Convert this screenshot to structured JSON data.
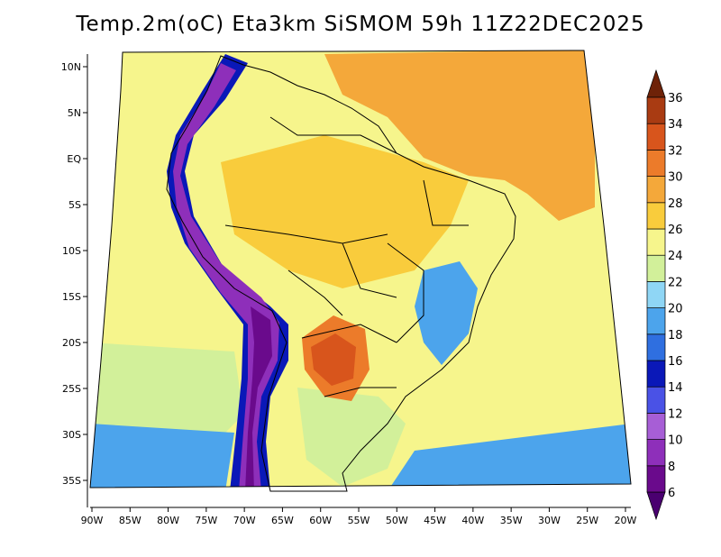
{
  "title": "Temp.2m(oC) Eta3km SiSMOM 59h 11Z22DEC2025",
  "map": {
    "lat_labels": [
      "10N",
      "5N",
      "EQ",
      "5S",
      "10S",
      "15S",
      "20S",
      "25S",
      "30S",
      "35S"
    ],
    "lon_labels": [
      "90W",
      "85W",
      "80W",
      "75W",
      "70W",
      "65W",
      "60W",
      "55W",
      "50W",
      "45W",
      "40W",
      "35W",
      "30W",
      "25W",
      "20W"
    ],
    "lat_range": [
      10,
      -37
    ],
    "lon_range": [
      -91,
      -20
    ],
    "regions": [
      {
        "name": "atlantic-north",
        "temp": 28
      },
      {
        "name": "amazon-basin",
        "temp": 26
      },
      {
        "name": "pacific-equatorial",
        "temp": 25
      },
      {
        "name": "pacific-south",
        "temp": 22
      },
      {
        "name": "southern-ocean",
        "temp": 18
      },
      {
        "name": "chaco-hotspot",
        "temp": 31
      },
      {
        "name": "andes-highlands",
        "temp": 8
      },
      {
        "name": "brazil-highlands",
        "temp": 19
      },
      {
        "name": "south-brazil",
        "temp": 23
      }
    ]
  },
  "colorbar": {
    "labels": [
      "36",
      "34",
      "32",
      "30",
      "28",
      "26",
      "24",
      "22",
      "20",
      "18",
      "16",
      "14",
      "12",
      "10",
      "8",
      "6"
    ],
    "bins": [
      {
        "min": 6,
        "max": 8,
        "color": "#6a0a8c"
      },
      {
        "min": 8,
        "max": 10,
        "color": "#8e2fba"
      },
      {
        "min": 10,
        "max": 12,
        "color": "#a75ed6"
      },
      {
        "min": 12,
        "max": 14,
        "color": "#4a52e6"
      },
      {
        "min": 14,
        "max": 16,
        "color": "#0a18b8"
      },
      {
        "min": 16,
        "max": 18,
        "color": "#2f6fe0"
      },
      {
        "min": 18,
        "max": 20,
        "color": "#4ca4ec"
      },
      {
        "min": 20,
        "max": 22,
        "color": "#8fd6f5"
      },
      {
        "min": 22,
        "max": 24,
        "color": "#d2f09a"
      },
      {
        "min": 24,
        "max": 26,
        "color": "#f6f58c"
      },
      {
        "min": 26,
        "max": 28,
        "color": "#f9cc3c"
      },
      {
        "min": 28,
        "max": 30,
        "color": "#f4a83a"
      },
      {
        "min": 30,
        "max": 32,
        "color": "#ec7b2a"
      },
      {
        "min": 32,
        "max": 34,
        "color": "#d8551c"
      },
      {
        "min": 34,
        "max": 36,
        "color": "#a93b12"
      }
    ],
    "arrow_low_color": "#4a0070",
    "arrow_high_color": "#6e2208"
  }
}
